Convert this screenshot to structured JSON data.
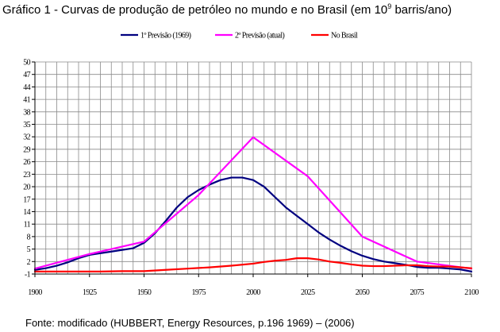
{
  "title": {
    "prefix": "Gráfico 1 - Curvas de produção de petróleo no mundo e no Brasil (em 10",
    "exponent": "9",
    "suffix": " barris/ano)"
  },
  "source_note": "Fonte: modificado (HUBBERT, Energy Resources, p.196 1969) – (2006)",
  "chart_data": {
    "type": "line",
    "title": "Gráfico 1 - Curvas de produção de petróleo no mundo e no Brasil (em 10^9 barris/ano)",
    "xlabel": "",
    "ylabel": "",
    "xlim": [
      1900,
      2100
    ],
    "ylim": [
      -1,
      50
    ],
    "grid": true,
    "legend_position": "top",
    "x_ticks": [
      1900,
      1925,
      1950,
      1975,
      2000,
      2025,
      2050,
      2075,
      2100
    ],
    "y_ticks": [
      -1,
      2,
      5,
      8,
      11,
      14,
      17,
      20,
      23,
      26,
      29,
      32,
      35,
      38,
      41,
      44,
      47,
      50
    ],
    "x_tick_labels": [
      "1900",
      "1925",
      "1950",
      "1975",
      "2000",
      "2025",
      "2050",
      "2075",
      "2100"
    ],
    "y_tick_labels": [
      "-1",
      "2",
      "5",
      "8",
      "11",
      "14",
      "17",
      "20",
      "23",
      "26",
      "29",
      "32",
      "35",
      "38",
      "41",
      "44",
      "47",
      "50"
    ],
    "series": [
      {
        "name": "1º Previsão (1969)",
        "color": "#000080",
        "x": [
          1900,
          1905,
          1910,
          1915,
          1920,
          1925,
          1930,
          1935,
          1940,
          1945,
          1950,
          1955,
          1960,
          1965,
          1970,
          1975,
          1980,
          1985,
          1990,
          1995,
          2000,
          2005,
          2010,
          2015,
          2020,
          2025,
          2030,
          2035,
          2040,
          2045,
          2050,
          2055,
          2060,
          2065,
          2070,
          2075,
          2080,
          2085,
          2090,
          2095,
          2100
        ],
        "values": [
          0,
          0.4,
          1.0,
          1.8,
          2.8,
          3.6,
          4.0,
          4.4,
          4.8,
          5.2,
          6.5,
          8.8,
          11.8,
          15.0,
          17.5,
          19.2,
          20.5,
          21.6,
          22.2,
          22.2,
          21.6,
          20.0,
          17.5,
          15.0,
          13.0,
          11.0,
          9.0,
          7.3,
          5.8,
          4.5,
          3.4,
          2.6,
          2.0,
          1.6,
          1.2,
          0.7,
          0.5,
          0.5,
          0.3,
          0.1,
          -0.4
        ]
      },
      {
        "name": "2º Previsão (atual)",
        "color": "#ff00ff",
        "x": [
          1900,
          1925,
          1950,
          1975,
          2000,
          2025,
          2050,
          2075,
          2100
        ],
        "values": [
          0.3,
          3.8,
          6.8,
          18.0,
          31.9,
          22.5,
          8.0,
          2.0,
          0.3
        ]
      },
      {
        "name": "No Brasil",
        "color": "#ff0000",
        "x": [
          1900,
          1910,
          1920,
          1930,
          1940,
          1950,
          1960,
          1970,
          1980,
          1990,
          2000,
          2005,
          2010,
          2015,
          2020,
          2025,
          2030,
          2035,
          2040,
          2045,
          2050,
          2055,
          2060,
          2065,
          2070,
          2075,
          2080,
          2085,
          2090,
          2095,
          2100
        ],
        "values": [
          -0.4,
          -0.4,
          -0.4,
          -0.4,
          -0.3,
          -0.3,
          0,
          0.3,
          0.6,
          1.0,
          1.5,
          1.9,
          2.2,
          2.4,
          2.8,
          2.8,
          2.5,
          2.0,
          1.7,
          1.3,
          1.0,
          0.9,
          0.9,
          1.0,
          1.1,
          1.1,
          0.9,
          0.8,
          0.8,
          0.6,
          0.4
        ]
      }
    ]
  }
}
